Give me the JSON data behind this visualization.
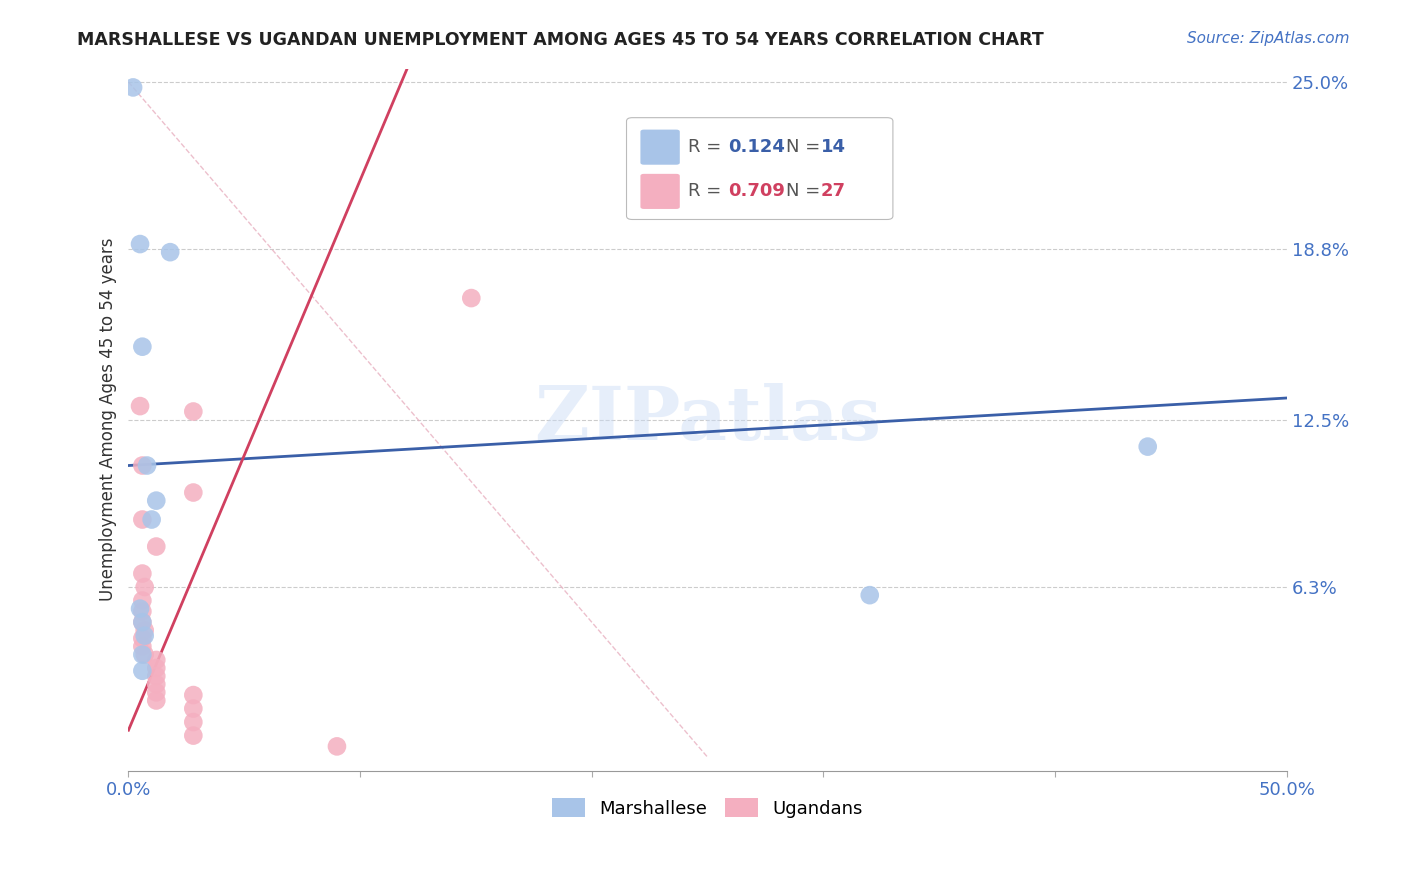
{
  "title": "MARSHALLESE VS UGANDAN UNEMPLOYMENT AMONG AGES 45 TO 54 YEARS CORRELATION CHART",
  "source": "Source: ZipAtlas.com",
  "ylabel": "Unemployment Among Ages 45 to 54 years",
  "xlim": [
    0.0,
    0.5
  ],
  "ylim": [
    -0.005,
    0.255
  ],
  "xticks": [
    0.0,
    0.1,
    0.2,
    0.3,
    0.4,
    0.5
  ],
  "xticklabels": [
    "0.0%",
    "",
    "",
    "",
    "",
    "50.0%"
  ],
  "ytick_values": [
    0.0,
    0.063,
    0.125,
    0.188,
    0.25
  ],
  "ytick_labels": [
    "",
    "6.3%",
    "12.5%",
    "18.8%",
    "25.0%"
  ],
  "marshallese_color": "#a8c4e8",
  "ugandan_color": "#f4afc0",
  "marshallese_line_color": "#3a5fa8",
  "ugandan_line_color": "#d04060",
  "diagonal_color": "#e8b0c0",
  "watermark": "ZIPatlas",
  "legend_r_marshallese": "0.124",
  "legend_n_marshallese": "14",
  "legend_r_ugandan": "0.709",
  "legend_n_ugandan": "27",
  "marshallese_points": [
    [
      0.002,
      0.248
    ],
    [
      0.005,
      0.19
    ],
    [
      0.018,
      0.187
    ],
    [
      0.006,
      0.152
    ],
    [
      0.008,
      0.108
    ],
    [
      0.012,
      0.095
    ],
    [
      0.01,
      0.088
    ],
    [
      0.005,
      0.055
    ],
    [
      0.006,
      0.05
    ],
    [
      0.007,
      0.045
    ],
    [
      0.006,
      0.038
    ],
    [
      0.006,
      0.032
    ],
    [
      0.32,
      0.06
    ],
    [
      0.44,
      0.115
    ]
  ],
  "ugandan_points": [
    [
      0.005,
      0.13
    ],
    [
      0.028,
      0.128
    ],
    [
      0.148,
      0.17
    ],
    [
      0.006,
      0.108
    ],
    [
      0.028,
      0.098
    ],
    [
      0.006,
      0.088
    ],
    [
      0.012,
      0.078
    ],
    [
      0.006,
      0.068
    ],
    [
      0.007,
      0.063
    ],
    [
      0.006,
      0.058
    ],
    [
      0.006,
      0.054
    ],
    [
      0.006,
      0.05
    ],
    [
      0.007,
      0.047
    ],
    [
      0.006,
      0.044
    ],
    [
      0.006,
      0.041
    ],
    [
      0.007,
      0.038
    ],
    [
      0.012,
      0.036
    ],
    [
      0.012,
      0.033
    ],
    [
      0.012,
      0.03
    ],
    [
      0.012,
      0.027
    ],
    [
      0.012,
      0.024
    ],
    [
      0.012,
      0.021
    ],
    [
      0.028,
      0.023
    ],
    [
      0.028,
      0.018
    ],
    [
      0.028,
      0.013
    ],
    [
      0.028,
      0.008
    ],
    [
      0.09,
      0.004
    ]
  ],
  "marshallese_line_pts": [
    [
      0.0,
      0.5
    ],
    [
      0.108,
      0.133
    ]
  ],
  "ugandan_line_pts": [
    [
      0.0,
      0.22
    ],
    [
      0.01,
      0.458
    ]
  ],
  "diagonal_line_pts": [
    [
      0.0,
      0.25
    ],
    [
      0.25,
      0.0
    ]
  ]
}
